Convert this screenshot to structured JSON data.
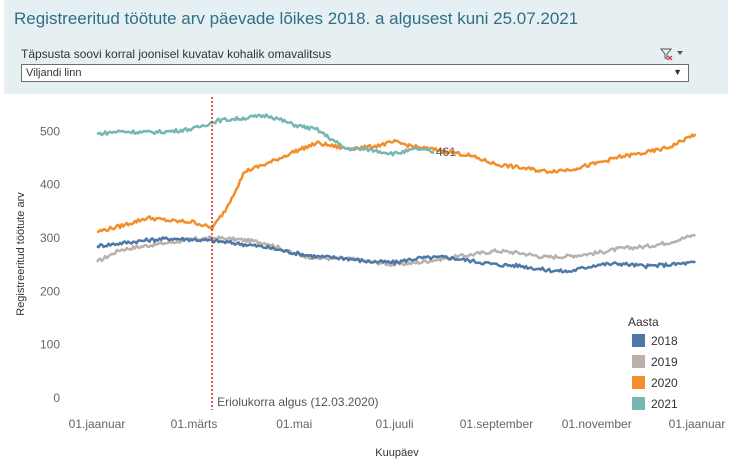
{
  "title": "Registreeritud töötute arv päevade lõikes 2018. a algusest kuni 25.07.2021",
  "filter": {
    "label": "Täpsusta soovi korral  joonisel kuvatav kohalik omavalitsus",
    "selected": "Viljandi linn"
  },
  "icons": {
    "filter": "filter-clear-icon",
    "menu": "chevron-down-icon",
    "dropdown": "dropdown-arrow-icon"
  },
  "colors": {
    "2018": "#4e79a7",
    "2019": "#bab0ac",
    "2020": "#f28e2b",
    "2021": "#76b7b2",
    "reference_line": "#d62728"
  },
  "chart_data": {
    "type": "line",
    "title": "Registreeritud töötute arv päevade lõikes 2018. a algusest kuni 25.07.2021",
    "xlabel": "Kuupäev",
    "ylabel": "Registreeritud töötute arv",
    "ylim": [
      0,
      540
    ],
    "xlim": [
      "01.jaanuar",
      "01.jaanuar"
    ],
    "x_ticks": [
      "01.jaanuar",
      "01.märts",
      "01.mai",
      "01.juuli",
      "01.september",
      "01.november",
      "01.jaanuar"
    ],
    "y_ticks": [
      0,
      100,
      200,
      300,
      400,
      500
    ],
    "legend_title": "Aasta",
    "legend_position": "bottom-right",
    "grid": false,
    "series": [
      {
        "name": "2018",
        "x": [
          "01.01",
          "15.01",
          "01.02",
          "15.02",
          "01.03",
          "15.03",
          "01.04",
          "15.04",
          "01.05",
          "15.05",
          "01.06",
          "15.06",
          "01.07",
          "15.07",
          "01.08",
          "15.08",
          "01.09",
          "15.09",
          "01.10",
          "15.10",
          "01.11",
          "15.11",
          "01.12",
          "15.12",
          "31.12"
        ],
        "values": [
          285,
          290,
          296,
          299,
          297,
          294,
          288,
          282,
          272,
          265,
          262,
          256,
          254,
          262,
          264,
          258,
          250,
          248,
          240,
          237,
          250,
          252,
          247,
          250,
          254
        ]
      },
      {
        "name": "2019",
        "x": [
          "01.01",
          "15.01",
          "01.02",
          "15.02",
          "01.03",
          "15.03",
          "01.04",
          "15.04",
          "01.05",
          "15.05",
          "01.06",
          "15.06",
          "01.07",
          "15.07",
          "01.08",
          "15.08",
          "01.09",
          "15.09",
          "01.10",
          "15.10",
          "01.11",
          "15.11",
          "01.12",
          "15.12",
          "31.12"
        ],
        "values": [
          255,
          278,
          286,
          292,
          298,
          300,
          296,
          290,
          270,
          262,
          262,
          256,
          250,
          254,
          262,
          268,
          276,
          272,
          264,
          266,
          272,
          280,
          284,
          292,
          306
        ]
      },
      {
        "name": "2020",
        "x": [
          "01.01",
          "15.01",
          "01.02",
          "15.02",
          "01.03",
          "12.03",
          "20.03",
          "01.04",
          "15.04",
          "01.05",
          "15.05",
          "01.06",
          "15.06",
          "01.07",
          "15.07",
          "01.08",
          "15.08",
          "01.09",
          "15.09",
          "01.10",
          "15.10",
          "01.11",
          "15.11",
          "01.12",
          "15.12",
          "31.12"
        ],
        "values": [
          312,
          322,
          338,
          332,
          330,
          318,
          352,
          425,
          440,
          462,
          478,
          468,
          470,
          480,
          470,
          463,
          455,
          438,
          432,
          425,
          428,
          440,
          452,
          460,
          470,
          495
        ]
      },
      {
        "name": "2021",
        "x": [
          "01.01",
          "15.01",
          "01.02",
          "15.02",
          "01.03",
          "15.03",
          "01.04",
          "15.04",
          "01.05",
          "15.05",
          "01.06",
          "15.06",
          "01.07",
          "15.07",
          "25.07"
        ],
        "values": [
          495,
          500,
          498,
          500,
          505,
          520,
          525,
          530,
          512,
          503,
          468,
          466,
          458,
          467,
          461
        ]
      }
    ],
    "annotations": [
      {
        "type": "vertical_line",
        "x": "12.03",
        "label": "Eriolukorra algus (12.03.2020)"
      },
      {
        "type": "point_label",
        "series": "2021",
        "x": "25.07",
        "label": "461"
      }
    ]
  }
}
